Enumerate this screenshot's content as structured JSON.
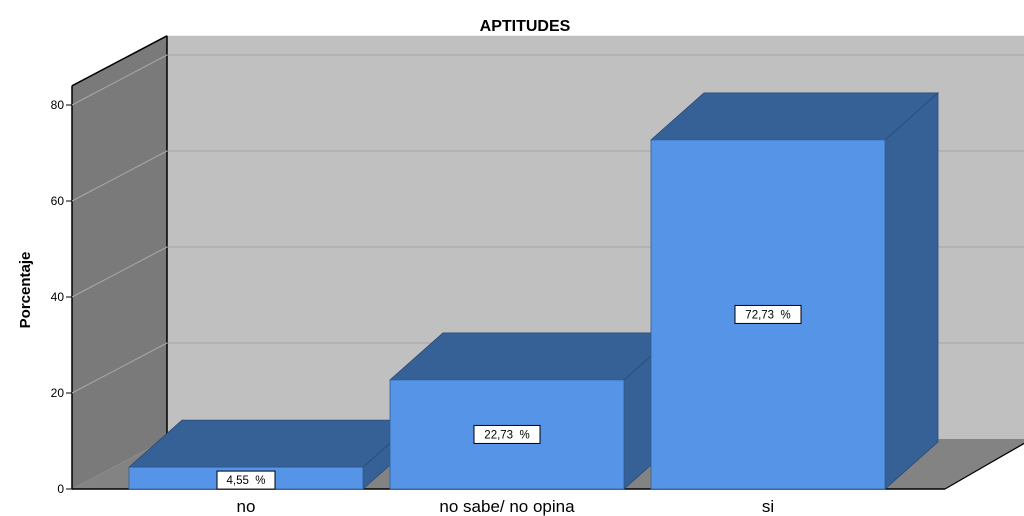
{
  "chart_data": {
    "type": "bar",
    "title": "APTITUDES",
    "xlabel": "",
    "ylabel": "Porcentaje",
    "categories": [
      "no",
      "no sabe/ no opina",
      "si"
    ],
    "values": [
      4.55,
      22.73,
      72.73
    ],
    "data_labels": [
      "4,55  %",
      "22,73  %",
      "72,73  %"
    ],
    "yticks": [
      0,
      20,
      40,
      60,
      80
    ],
    "ylim": [
      0,
      84
    ],
    "grid": true,
    "style": "3d",
    "colors": {
      "bar_front": "#5594e6",
      "bar_top": "#366196",
      "bar_side": "#366196",
      "back_wall": "#c0c0c0",
      "side_wall": "#7a7a7a",
      "floor": "#838383"
    }
  }
}
